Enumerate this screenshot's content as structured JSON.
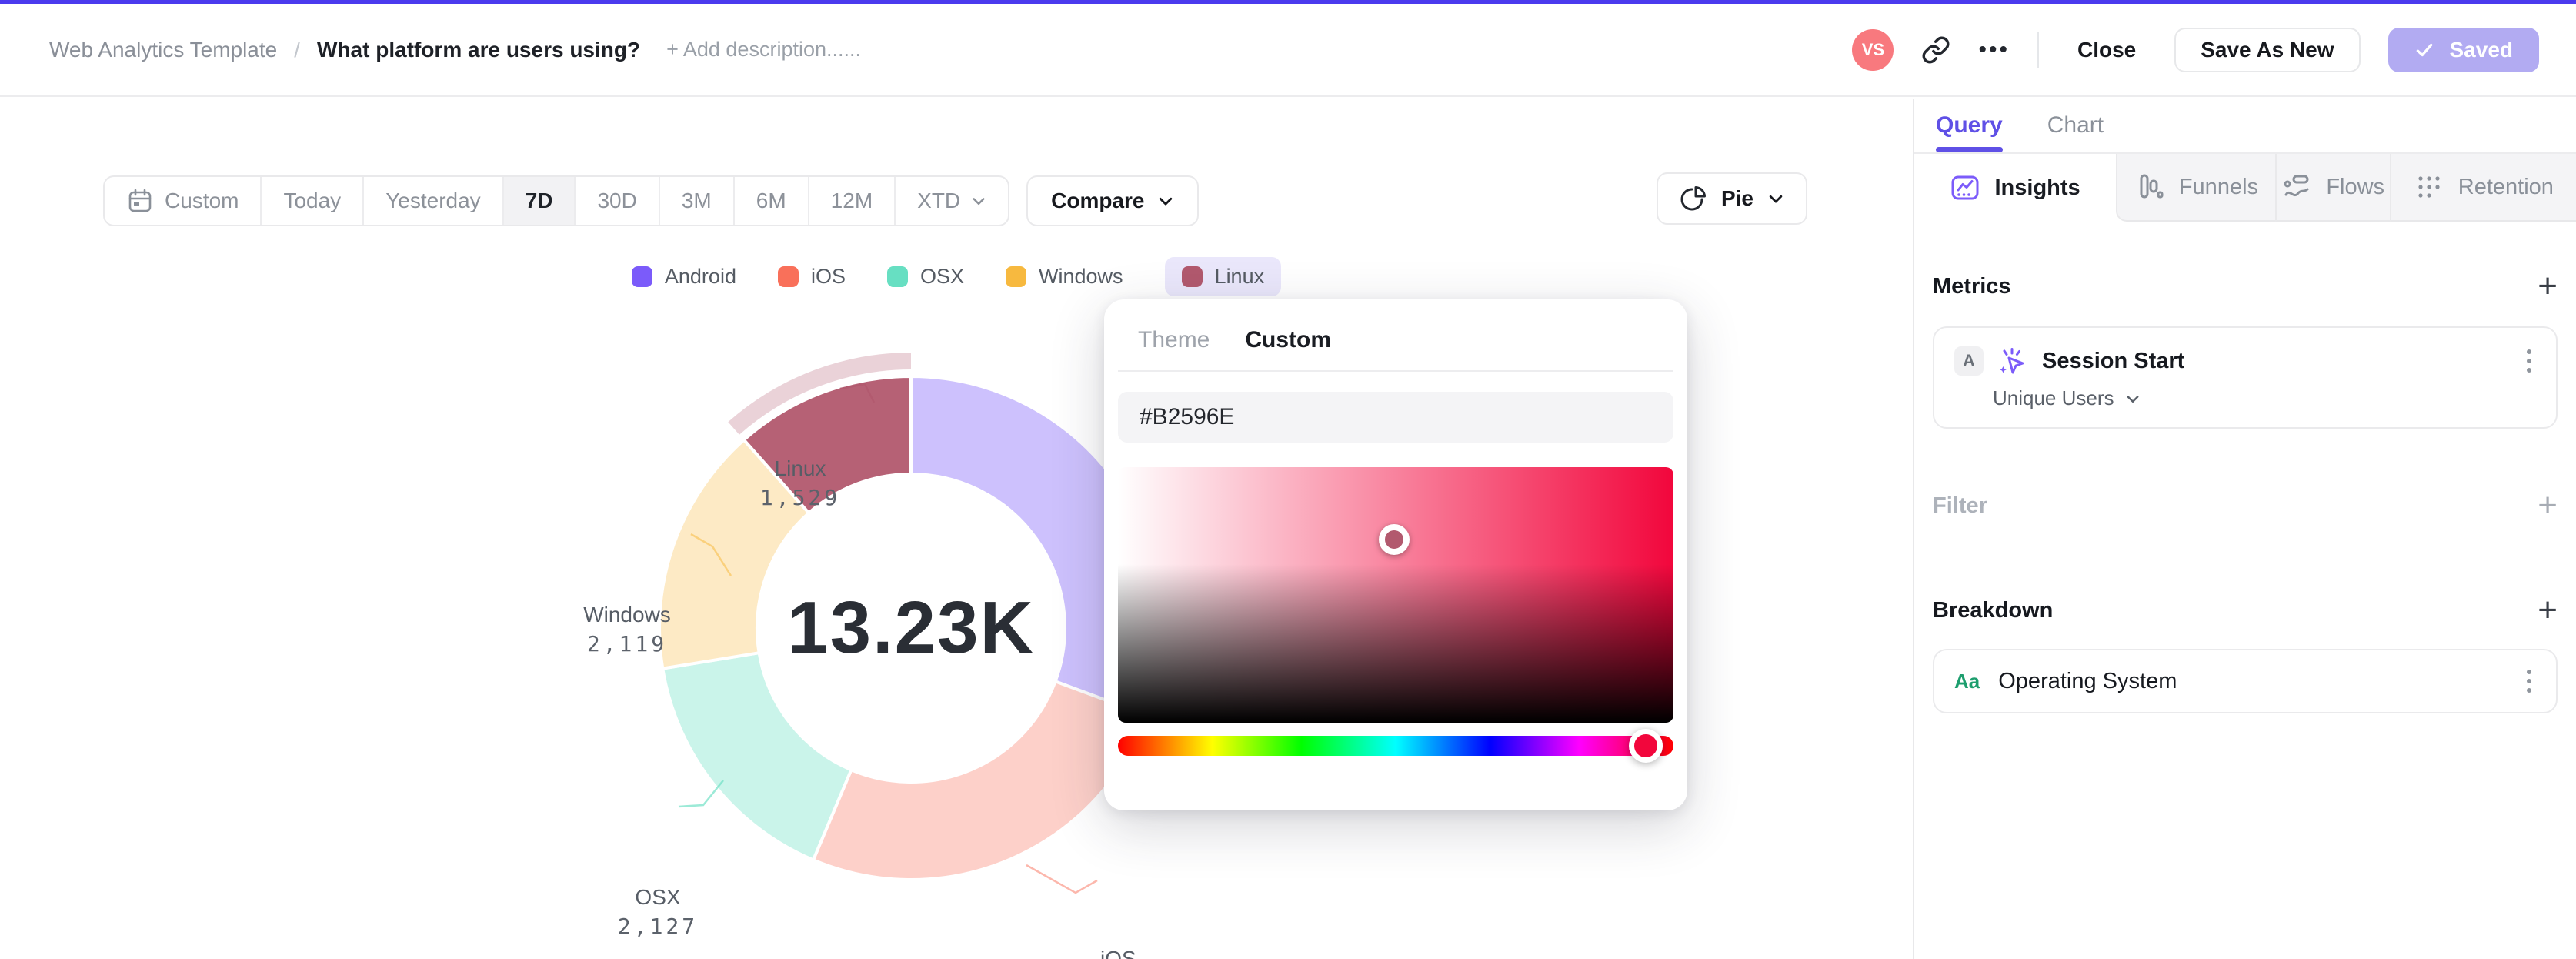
{
  "topbar": {
    "breadcrumb": "Web Analytics Template",
    "separator": "/",
    "title": "What platform are users using?",
    "add_description": "+ Add description......",
    "avatar_initials": "VS",
    "close_label": "Close",
    "save_as_new_label": "Save As New",
    "saved_label": "Saved"
  },
  "toolbar": {
    "ranges": [
      "Custom",
      "Today",
      "Yesterday",
      "7D",
      "30D",
      "3M",
      "6M",
      "12M",
      "XTD"
    ],
    "active_range": "7D",
    "compare_label": "Compare",
    "chart_type": "Pie"
  },
  "chart_data": {
    "type": "pie",
    "title": "",
    "center_total": "13.23K",
    "legend_position": "top",
    "selected_slice": "Linux",
    "series": [
      {
        "label": "Android",
        "value": 4053,
        "value_estimated": true,
        "display_value": null,
        "color": "#7B5BFA",
        "slice_opacity": 0.38
      },
      {
        "label": "iOS",
        "value": 3402,
        "display_value": "3,402",
        "color": "#F9705A",
        "slice_opacity": 0.33
      },
      {
        "label": "OSX",
        "value": 2127,
        "display_value": "2,127",
        "color": "#67DFC2",
        "slice_opacity": 0.35
      },
      {
        "label": "Windows",
        "value": 2119,
        "display_value": "2,119",
        "color": "#F7B93F",
        "slice_opacity": 0.3
      },
      {
        "label": "Linux",
        "value": 1529,
        "display_value": "1,529",
        "color": "#B2596E",
        "slice_opacity": 0.95,
        "selected": true
      }
    ]
  },
  "color_picker": {
    "tabs": [
      {
        "label": "Theme",
        "active": false
      },
      {
        "label": "Custom",
        "active": true
      }
    ],
    "hex_value": "#B2596E",
    "cursor_color": "#B2596E",
    "hue_color": "#F2063C"
  },
  "sidebar": {
    "tabs": [
      {
        "label": "Query",
        "active": true
      },
      {
        "label": "Chart",
        "active": false
      }
    ],
    "modes": [
      {
        "label": "Insights",
        "active": true
      },
      {
        "label": "Funnels",
        "active": false
      },
      {
        "label": "Flows",
        "active": false
      },
      {
        "label": "Retention",
        "active": false
      }
    ],
    "metrics": {
      "header": "Metrics",
      "add_label": "+",
      "items": [
        {
          "badge": "A",
          "label": "Session Start",
          "aggregation": "Unique Users"
        }
      ]
    },
    "filter": {
      "header": "Filter",
      "add_label": "+"
    },
    "breakdown": {
      "header": "Breakdown",
      "add_label": "+",
      "items": [
        {
          "badge": "Aa",
          "label": "Operating System"
        }
      ]
    }
  },
  "colors": {
    "accent": "#4B3AEE",
    "purple_icon": "#7C5CFA",
    "saved_button_bg": "#B2ABF2",
    "avatar_bg": "#F8797E",
    "selected_legend_pill_bg": "#EAE7FB"
  }
}
